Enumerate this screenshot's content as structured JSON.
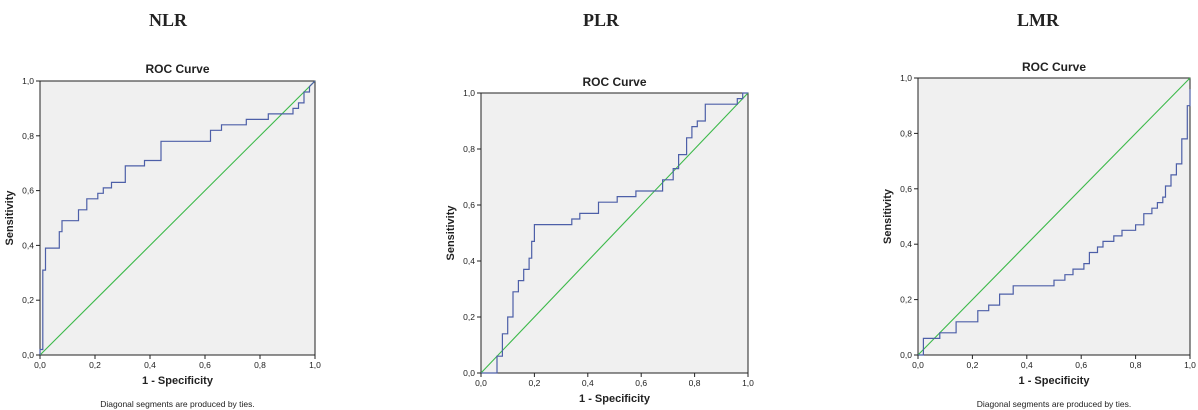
{
  "chart_data": [
    {
      "type": "line",
      "heading": "NLR",
      "title": "ROC Curve",
      "xlabel": "1 - Specificity",
      "ylabel": "Sensitivity",
      "xlim": [
        0,
        1
      ],
      "ylim": [
        0,
        1
      ],
      "xticks": [
        "0,0",
        "0,2",
        "0,4",
        "0,6",
        "0,8",
        "1,0"
      ],
      "yticks": [
        "0,0",
        "0,2",
        "0,4",
        "0,6",
        "0,8",
        "1,0"
      ],
      "footnote": "Diagonal segments are produced by ties.",
      "reference_color": "#3cb94a",
      "curve_color": "#4d5fa8",
      "series": [
        {
          "x": [
            0,
            0,
            0.01,
            0.01,
            0.02,
            0.02,
            0.04,
            0.04,
            0.07,
            0.07,
            0.08,
            0.08,
            0.14,
            0.14,
            0.17,
            0.17,
            0.21,
            0.21,
            0.23,
            0.23,
            0.26,
            0.26,
            0.31,
            0.31,
            0.38,
            0.38,
            0.44,
            0.44,
            0.62,
            0.62,
            0.66,
            0.66,
            0.75,
            0.75,
            0.83,
            0.83,
            0.92,
            0.92,
            0.94,
            0.94,
            0.96,
            0.96,
            0.98,
            0.98,
            1
          ],
          "y": [
            0,
            0.02,
            0.02,
            0.31,
            0.31,
            0.39,
            0.39,
            0.39,
            0.39,
            0.45,
            0.45,
            0.49,
            0.49,
            0.53,
            0.53,
            0.57,
            0.57,
            0.59,
            0.59,
            0.61,
            0.61,
            0.63,
            0.63,
            0.69,
            0.69,
            0.71,
            0.71,
            0.78,
            0.78,
            0.82,
            0.82,
            0.84,
            0.84,
            0.86,
            0.86,
            0.88,
            0.88,
            0.9,
            0.9,
            0.92,
            0.92,
            0.96,
            0.96,
            0.98,
            1
          ]
        }
      ]
    },
    {
      "type": "line",
      "heading": "PLR",
      "title": "ROC Curve",
      "xlabel": "1 - Specificity",
      "ylabel": "Sensitivity",
      "xlim": [
        0,
        1
      ],
      "ylim": [
        0,
        1
      ],
      "xticks": [
        "0,0",
        "0,2",
        "0,4",
        "0,6",
        "0,8",
        "1,0"
      ],
      "yticks": [
        "0,0",
        "0,2",
        "0,4",
        "0,6",
        "0,8",
        "1,0"
      ],
      "footnote": "",
      "reference_color": "#3cb94a",
      "curve_color": "#4d5fa8",
      "series": [
        {
          "x": [
            0,
            0.06,
            0.06,
            0.08,
            0.08,
            0.1,
            0.1,
            0.12,
            0.12,
            0.14,
            0.14,
            0.16,
            0.16,
            0.18,
            0.18,
            0.19,
            0.19,
            0.2,
            0.2,
            0.34,
            0.34,
            0.37,
            0.37,
            0.44,
            0.44,
            0.51,
            0.51,
            0.58,
            0.58,
            0.68,
            0.68,
            0.72,
            0.72,
            0.74,
            0.74,
            0.77,
            0.77,
            0.79,
            0.79,
            0.81,
            0.81,
            0.84,
            0.84,
            0.96,
            0.96,
            0.98,
            0.98,
            1
          ],
          "y": [
            0,
            0,
            0.06,
            0.06,
            0.14,
            0.14,
            0.2,
            0.2,
            0.29,
            0.29,
            0.33,
            0.33,
            0.37,
            0.37,
            0.41,
            0.41,
            0.47,
            0.47,
            0.53,
            0.53,
            0.55,
            0.55,
            0.57,
            0.57,
            0.61,
            0.61,
            0.63,
            0.63,
            0.65,
            0.65,
            0.69,
            0.69,
            0.73,
            0.73,
            0.78,
            0.78,
            0.84,
            0.84,
            0.88,
            0.88,
            0.9,
            0.9,
            0.96,
            0.96,
            0.98,
            0.98,
            1,
            1
          ]
        }
      ]
    },
    {
      "type": "line",
      "heading": "LMR",
      "title": "ROC Curve",
      "xlabel": "1 - Specificity",
      "ylabel": "Sensitivity",
      "xlim": [
        0,
        1
      ],
      "ylim": [
        0,
        1
      ],
      "xticks": [
        "0,0",
        "0,2",
        "0,4",
        "0,6",
        "0,8",
        "1,0"
      ],
      "yticks": [
        "0,0",
        "0,2",
        "0,4",
        "0,6",
        "0,8",
        "1,0"
      ],
      "footnote": "Diagonal segments are produced by ties.",
      "reference_color": "#3cb94a",
      "curve_color": "#4d5fa8",
      "series": [
        {
          "x": [
            0,
            0.02,
            0.02,
            0.08,
            0.08,
            0.14,
            0.14,
            0.22,
            0.22,
            0.26,
            0.26,
            0.3,
            0.3,
            0.35,
            0.35,
            0.5,
            0.5,
            0.54,
            0.54,
            0.57,
            0.57,
            0.61,
            0.61,
            0.63,
            0.63,
            0.66,
            0.66,
            0.68,
            0.68,
            0.72,
            0.72,
            0.75,
            0.75,
            0.8,
            0.8,
            0.83,
            0.83,
            0.86,
            0.86,
            0.88,
            0.88,
            0.9,
            0.9,
            0.91,
            0.91,
            0.93,
            0.93,
            0.95,
            0.95,
            0.97,
            0.97,
            0.99,
            0.99,
            1,
            1
          ],
          "y": [
            0,
            0,
            0.06,
            0.06,
            0.08,
            0.08,
            0.12,
            0.12,
            0.16,
            0.16,
            0.18,
            0.18,
            0.22,
            0.22,
            0.25,
            0.25,
            0.27,
            0.27,
            0.29,
            0.29,
            0.31,
            0.31,
            0.33,
            0.33,
            0.37,
            0.37,
            0.39,
            0.39,
            0.41,
            0.41,
            0.43,
            0.43,
            0.45,
            0.45,
            0.47,
            0.47,
            0.51,
            0.51,
            0.53,
            0.53,
            0.55,
            0.55,
            0.57,
            0.57,
            0.61,
            0.61,
            0.65,
            0.65,
            0.69,
            0.69,
            0.78,
            0.78,
            0.9,
            0.9,
            0.96
          ]
        }
      ]
    }
  ]
}
